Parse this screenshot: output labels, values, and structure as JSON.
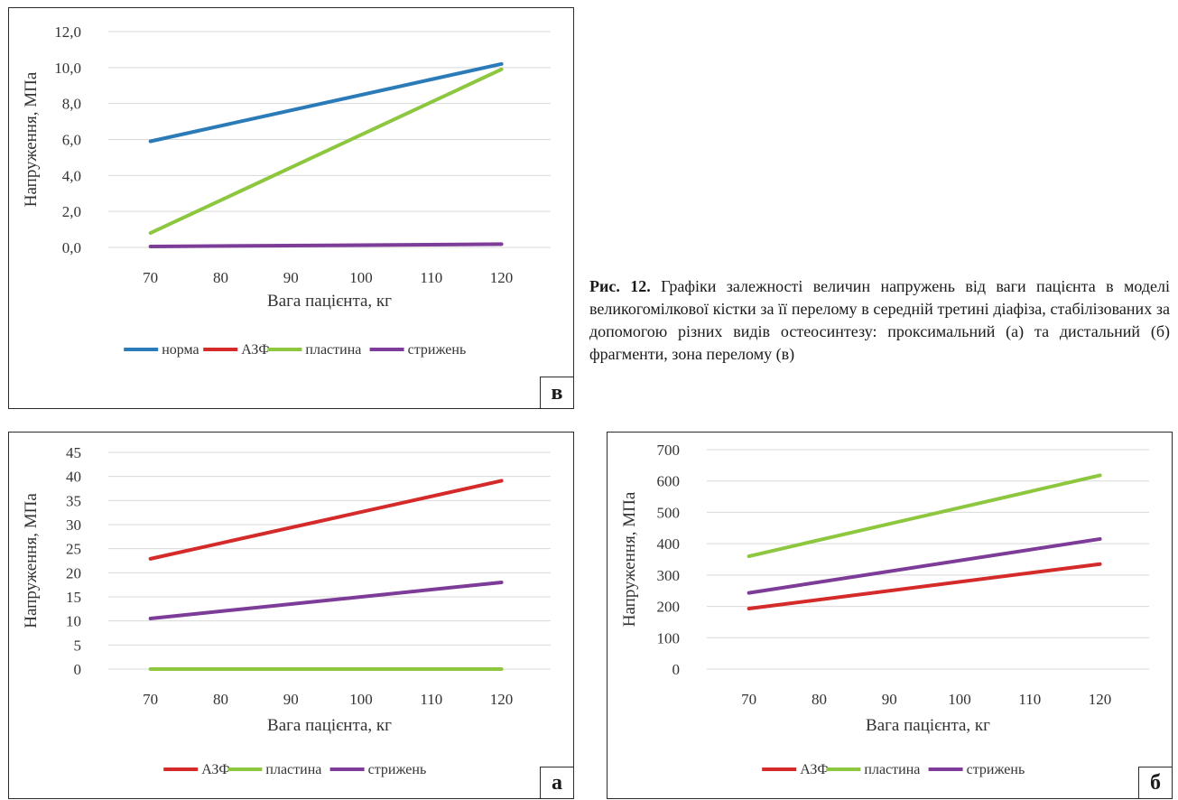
{
  "caption": {
    "label": "Рис. 12.",
    "text": " Графіки залежності величин напружень від ваги пацієнта в моделі великогомілкової кістки за її перелому в середній третині діафіза, стабілізованих за допомогою різних видів остеосинтезу: проксимальний (а) та дистальний (б) фрагменти, зона перелому (в)"
  },
  "chart_data": [
    {
      "id": "v",
      "panel_label": "в",
      "type": "line",
      "xlabel": "Вага пацієнта, кг",
      "ylabel": "Напруження, МПа",
      "x_ticks": [
        70,
        80,
        90,
        100,
        110,
        120
      ],
      "y_ticks": [
        "0,0",
        "2,0",
        "4,0",
        "6,0",
        "8,0",
        "10,0",
        "12,0"
      ],
      "xlim": [
        64,
        127
      ],
      "ylim": [
        0,
        12
      ],
      "grid": true,
      "legend_position": "bottom",
      "series": [
        {
          "name": "норма",
          "color": "#2b7bb9",
          "x": [
            70,
            120
          ],
          "y": [
            5.9,
            10.2
          ]
        },
        {
          "name": "АЗФ",
          "color": "#d42a2a",
          "x": [],
          "y": []
        },
        {
          "name": "пластина",
          "color": "#8dc63f",
          "x": [
            70,
            120
          ],
          "y": [
            0.8,
            9.9
          ]
        },
        {
          "name": "стрижень",
          "color": "#7d3c98",
          "x": [
            70,
            120
          ],
          "y": [
            0.05,
            0.18
          ]
        }
      ]
    },
    {
      "id": "a",
      "panel_label": "а",
      "type": "line",
      "xlabel": "Вага пацієнта, кг",
      "ylabel": "Напруження, МПа",
      "x_ticks": [
        70,
        80,
        90,
        100,
        110,
        120
      ],
      "y_ticks": [
        "0",
        "5",
        "10",
        "15",
        "20",
        "25",
        "30",
        "35",
        "40",
        "45"
      ],
      "xlim": [
        64,
        127
      ],
      "ylim": [
        0,
        45
      ],
      "grid": true,
      "legend_position": "bottom",
      "series": [
        {
          "name": "АЗФ",
          "color": "#d42a2a",
          "x": [
            70,
            120
          ],
          "y": [
            22.9,
            39.1
          ]
        },
        {
          "name": "пластина",
          "color": "#8dc63f",
          "x": [
            70,
            120
          ],
          "y": [
            0,
            0
          ]
        },
        {
          "name": "стрижень",
          "color": "#7d3c98",
          "x": [
            70,
            120
          ],
          "y": [
            10.5,
            18.0
          ]
        }
      ]
    },
    {
      "id": "b",
      "panel_label": "б",
      "type": "line",
      "xlabel": "Вага пацієнта, кг",
      "ylabel": "Напруження, МПа",
      "x_ticks": [
        70,
        80,
        90,
        100,
        110,
        120
      ],
      "y_ticks": [
        "0",
        "100",
        "200",
        "300",
        "400",
        "500",
        "600",
        "700"
      ],
      "xlim": [
        64,
        127
      ],
      "ylim": [
        0,
        700
      ],
      "grid": true,
      "legend_position": "bottom",
      "series": [
        {
          "name": "АЗФ",
          "color": "#d42a2a",
          "x": [
            70,
            120
          ],
          "y": [
            193,
            335
          ]
        },
        {
          "name": "пластина",
          "color": "#8dc63f",
          "x": [
            70,
            120
          ],
          "y": [
            360,
            618
          ]
        },
        {
          "name": "стрижень",
          "color": "#7d3c98",
          "x": [
            70,
            120
          ],
          "y": [
            243,
            415
          ]
        }
      ]
    }
  ]
}
